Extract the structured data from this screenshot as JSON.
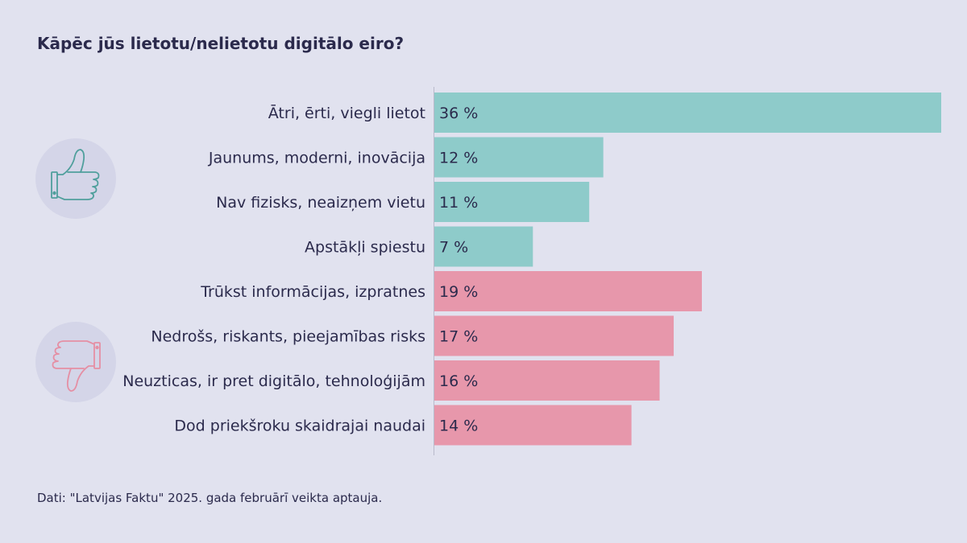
{
  "title": "Kāpēc jūs lietotu/nelietotu digitālo eiro?",
  "source": "Dati: \"Latvijas Faktu\" 2025. gada februārī veikta aptauja.",
  "colors": {
    "positive": "#8ecbca",
    "negative": "#e797ab",
    "axis": "#b9bacb"
  },
  "icons": {
    "positive": "thumbs-up-icon",
    "negative": "thumbs-down-icon"
  },
  "chart_data": {
    "type": "bar",
    "orientation": "horizontal",
    "categories": [
      "Ātri, ērti, viegli lietot",
      "Jaunums, moderni, inovācija",
      "Nav fizisks, neaizņem vietu",
      "Apstākļi spiestu",
      "Trūkst informācijas, izpratnes",
      "Nedrošs, riskants, pieejamības risks",
      "Neuzticas, ir pret digitālo, tehnoloģijām",
      "Dod priekšroku skaidrajai naudai"
    ],
    "values": [
      36,
      12,
      11,
      7,
      19,
      17,
      16,
      14
    ],
    "value_labels": [
      "36 %",
      "12 %",
      "11 %",
      "7 %",
      "19 %",
      "17 %",
      "16 %",
      "14 %"
    ],
    "groups": [
      "positive",
      "positive",
      "positive",
      "positive",
      "negative",
      "negative",
      "negative",
      "negative"
    ],
    "xlim": [
      0,
      36
    ],
    "grid": false,
    "legend": "none"
  }
}
